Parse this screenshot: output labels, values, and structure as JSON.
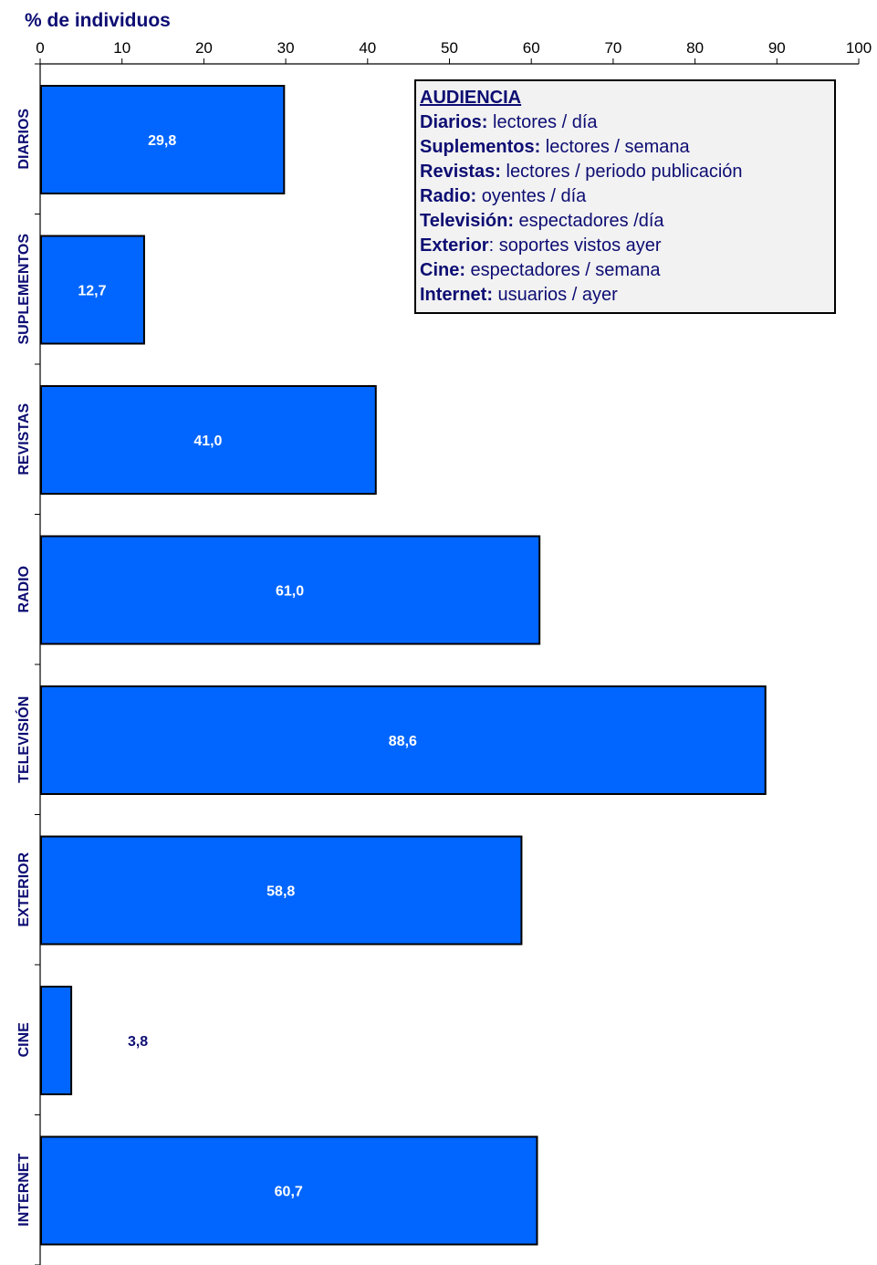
{
  "chart_data": {
    "type": "bar",
    "orientation": "horizontal",
    "xlabel": "% de individuos",
    "xlim": [
      0,
      100
    ],
    "xticks": [
      "0",
      "10",
      "20",
      "30",
      "40",
      "50",
      "60",
      "70",
      "80",
      "90",
      "100"
    ],
    "categories": [
      "DIARIOS",
      "SUPLEMENTOS",
      "REVISTAS",
      "RADIO",
      "TELEVISIÓN",
      "EXTERIOR",
      "CINE",
      "INTERNET"
    ],
    "values": [
      29.8,
      12.7,
      41.0,
      61.0,
      88.6,
      58.8,
      3.8,
      60.7
    ],
    "value_labels": [
      "29,8",
      "12,7",
      "41,0",
      "61,0",
      "88,6",
      "58,8",
      "3,8",
      "60,7"
    ],
    "bar_color": "#0066ff",
    "grid": false,
    "legend_placement": "top-right"
  },
  "legend": {
    "title": "AUDIENCIA",
    "rows": [
      {
        "key": "Diarios:",
        "text": " lectores / día"
      },
      {
        "key": "Suplementos:",
        "text": " lectores / semana"
      },
      {
        "key": "Revistas:",
        "text": " lectores / periodo publicación"
      },
      {
        "key": "Radio:",
        "text": " oyentes / día"
      },
      {
        "key": "Televisión:",
        "text": " espectadores /día"
      },
      {
        "key": "Exterior",
        "text": ": soportes vistos ayer"
      },
      {
        "key": "Cine:",
        "text": " espectadores / semana"
      },
      {
        "key": "Internet:",
        "text": " usuarios / ayer"
      }
    ]
  }
}
